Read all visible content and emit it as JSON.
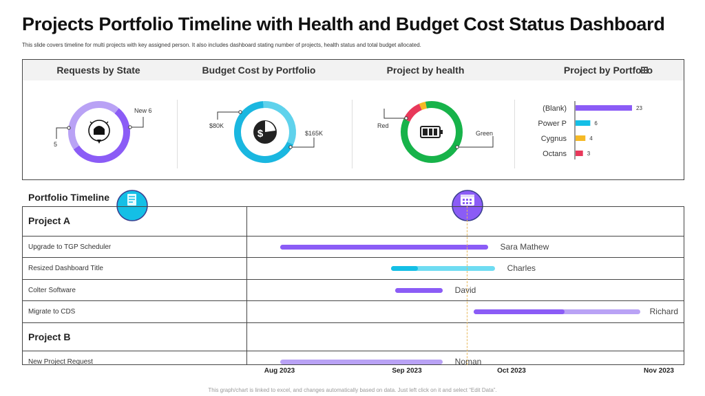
{
  "header": {
    "title": "Projects Portfolio Timeline with Health and Budget Cost Status Dashboard",
    "subtitle": "This slide covers timeline for multi projects with key assigned person. It also includes dashboard stating number of projects, health status and total budget allocated."
  },
  "dashboard": {
    "requests_title": "Requests by State",
    "budget_title": "Budget Cost by Portfolio",
    "health_title": "Project by health",
    "portfolio_title": "Project by Portfolio"
  },
  "chart_data": [
    {
      "type": "pie",
      "title": "Requests by State",
      "labels": [
        "New",
        ""
      ],
      "values": [
        6,
        5
      ],
      "data_labels": [
        "New 6",
        "5"
      ],
      "colors": [
        "#8b5cf6",
        "#b9a2f5"
      ]
    },
    {
      "type": "pie",
      "title": "Budget Cost by Portfolio",
      "labels": [
        "",
        ""
      ],
      "values": [
        80,
        165
      ],
      "data_labels": [
        "$80K",
        "$165K"
      ],
      "colors": [
        "#5fd2ec",
        "#1ab7e0"
      ]
    },
    {
      "type": "pie",
      "title": "Project by health",
      "labels": [
        "Red",
        "",
        "Green"
      ],
      "values": [
        4,
        1.2,
        30
      ],
      "data_labels": [
        "Red",
        "",
        "Green"
      ],
      "colors": [
        "#e8385a",
        "#f5b925",
        "#17b34a"
      ]
    },
    {
      "type": "bar",
      "orientation": "horizontal",
      "title": "Project by Portfolio",
      "categories": [
        "(Blank)",
        "Power P",
        "Cygnus",
        "Octans"
      ],
      "values": [
        23,
        6,
        4,
        3
      ],
      "colors": [
        "#8b5cf6",
        "#14bfe6",
        "#f5b925",
        "#e8385a"
      ]
    },
    {
      "type": "gantt",
      "title": "Portfolio Timeline",
      "x_ticks": [
        "Aug 2023",
        "Sep 2023",
        "Oct 2023",
        "Nov 2023"
      ],
      "groups": [
        {
          "name": "Project A",
          "tasks": [
            {
              "name": "Upgrade to TGP Scheduler",
              "person": "Sara Mathew",
              "start": "2023-08-01",
              "end": "2023-09-24",
              "progress_end": "2023-09-24",
              "color": "#8b5cf6",
              "light": "#b9a2f5"
            },
            {
              "name": "Resized Dashboard Title",
              "person": "Charles",
              "start": "2023-08-28",
              "end": "2023-09-26",
              "progress_end": "2023-09-04",
              "color": "#14bfe6",
              "light": "#6fdcf2"
            },
            {
              "name": "Colter Software",
              "person": "David",
              "start": "2023-08-29",
              "end": "2023-09-11",
              "progress_end": "2023-09-11",
              "color": "#8b5cf6",
              "light": "#b9a2f5"
            },
            {
              "name": "Migrate to CDS",
              "person": "Richard",
              "start": "2023-09-20",
              "end": "2023-10-28",
              "progress_end": "2023-10-12",
              "color": "#8b5cf6",
              "light": "#b9a2f5"
            }
          ]
        },
        {
          "name": "Project B",
          "tasks": [
            {
              "name": "New Project Request",
              "person": "Noman",
              "start": "2023-08-01",
              "end": "2023-09-11",
              "progress_end": "2023-08-01",
              "color": "#8b5cf6",
              "light": "#b9a2f5"
            }
          ]
        }
      ]
    }
  ],
  "timeline": {
    "title": "Portfolio Timeline"
  },
  "footer": {
    "note": "This graph/chart is linked to excel, and changes automatically based on data. Just left click on it and select “Edit Data”."
  },
  "icons": {
    "requests": "alarm-pin-icon",
    "budget": "dollar-pie-icon",
    "health": "battery-icon",
    "portfolio": "building-icon",
    "timeline": "document-icon",
    "calendar": "calendar-icon"
  }
}
